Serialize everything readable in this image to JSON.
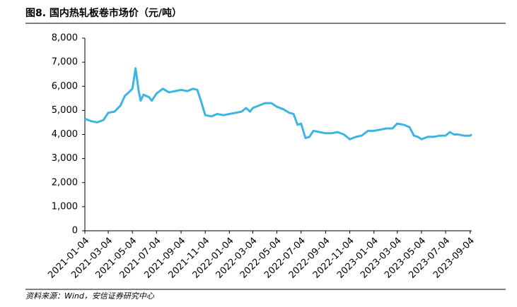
{
  "chart_data": {
    "type": "line",
    "title": "图8. 国内热轧板卷市场价（元/吨）",
    "source": "资料来源：Wind，安信证券研究中心",
    "color": "#3db5e3",
    "x": [
      "2021-01-04",
      "2021-01-20",
      "2021-02-04",
      "2021-02-20",
      "2021-03-04",
      "2021-03-20",
      "2021-04-04",
      "2021-04-15",
      "2021-04-25",
      "2021-05-04",
      "2021-05-12",
      "2021-05-20",
      "2021-05-25",
      "2021-06-01",
      "2021-06-15",
      "2021-06-22",
      "2021-07-04",
      "2021-07-20",
      "2021-08-04",
      "2021-08-20",
      "2021-09-04",
      "2021-09-20",
      "2021-10-04",
      "2021-10-15",
      "2021-10-25",
      "2021-11-04",
      "2021-11-20",
      "2021-12-04",
      "2021-12-20",
      "2022-01-04",
      "2022-01-20",
      "2022-02-04",
      "2022-02-15",
      "2022-02-25",
      "2022-03-04",
      "2022-03-20",
      "2022-04-04",
      "2022-04-20",
      "2022-05-04",
      "2022-05-20",
      "2022-06-04",
      "2022-06-15",
      "2022-06-25",
      "2022-07-04",
      "2022-07-15",
      "2022-07-25",
      "2022-08-04",
      "2022-08-20",
      "2022-09-04",
      "2022-09-20",
      "2022-10-04",
      "2022-10-20",
      "2022-11-04",
      "2022-11-20",
      "2022-12-04",
      "2022-12-20",
      "2023-01-04",
      "2023-01-20",
      "2023-02-04",
      "2023-02-20",
      "2023-03-04",
      "2023-03-20",
      "2023-04-04",
      "2023-04-15",
      "2023-04-25",
      "2023-05-04",
      "2023-05-20",
      "2023-06-04",
      "2023-06-20",
      "2023-07-04",
      "2023-07-15",
      "2023-07-25",
      "2023-08-04",
      "2023-08-20",
      "2023-09-04",
      "2023-09-08"
    ],
    "values": [
      4650,
      4550,
      4500,
      4600,
      4900,
      4950,
      5200,
      5600,
      5750,
      5900,
      6750,
      5800,
      5400,
      5650,
      5550,
      5400,
      5700,
      5900,
      5750,
      5800,
      5850,
      5800,
      5900,
      5850,
      5350,
      4800,
      4750,
      4850,
      4800,
      4850,
      4900,
      4950,
      5100,
      4950,
      5100,
      5200,
      5300,
      5300,
      5150,
      5050,
      4900,
      4850,
      4400,
      4450,
      3850,
      3900,
      4150,
      4100,
      4050,
      4050,
      4100,
      4000,
      3800,
      3900,
      3950,
      4150,
      4150,
      4200,
      4250,
      4250,
      4450,
      4400,
      4300,
      3950,
      3900,
      3800,
      3900,
      3900,
      3950,
      3950,
      4100,
      4000,
      4000,
      3950,
      3950,
      4000
    ],
    "xlim": [
      "2021-01-04",
      "2023-09-08"
    ],
    "xticks": [
      "2021-01-04",
      "2021-03-04",
      "2021-05-04",
      "2021-07-04",
      "2021-09-04",
      "2021-11-04",
      "2022-01-04",
      "2022-03-04",
      "2022-05-04",
      "2022-07-04",
      "2022-09-04",
      "2022-11-04",
      "2023-01-04",
      "2023-03-04",
      "2023-05-04",
      "2023-07-04",
      "2023-09-04"
    ],
    "ylim": [
      0,
      8000
    ],
    "yticks": [
      0,
      {
        "value": 1000,
        "label": "1,000"
      },
      {
        "value": 2000,
        "label": "2,000"
      },
      {
        "value": 3000,
        "label": "3,000"
      },
      {
        "value": 4000,
        "label": "4,000"
      },
      {
        "value": 5000,
        "label": "5,000"
      },
      {
        "value": 6000,
        "label": "6,000"
      },
      {
        "value": 7000,
        "label": "7,000"
      },
      {
        "value": 8000,
        "label": "8,000"
      }
    ]
  }
}
